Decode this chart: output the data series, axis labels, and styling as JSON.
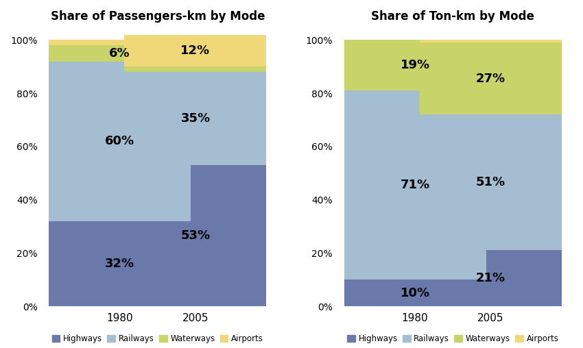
{
  "left_title": "Share of Passengers-km by Mode",
  "right_title": "Share of Ton-km by Mode",
  "categories": [
    "1980",
    "2005"
  ],
  "left_data": {
    "Highways": [
      32,
      53
    ],
    "Railways": [
      60,
      35
    ],
    "Waterways": [
      6,
      2
    ],
    "Airports": [
      2,
      12
    ]
  },
  "right_data": {
    "Highways": [
      10,
      21
    ],
    "Railways": [
      71,
      51
    ],
    "Waterways": [
      19,
      27
    ],
    "Airports": [
      0,
      1
    ]
  },
  "label_threshold": 5,
  "colors": {
    "Highways": "#6b78aa",
    "Railways": "#a4bdd0",
    "Waterways": "#c8d46a",
    "Airports": "#f0d878"
  },
  "bar_width": 0.75,
  "legend_labels": [
    "Highways",
    "Railways",
    "Waterways",
    "Airports"
  ],
  "yticks": [
    0,
    20,
    40,
    60,
    80,
    100
  ],
  "background_color": "#ffffff",
  "label_fontsize": 13,
  "title_fontsize": 12
}
